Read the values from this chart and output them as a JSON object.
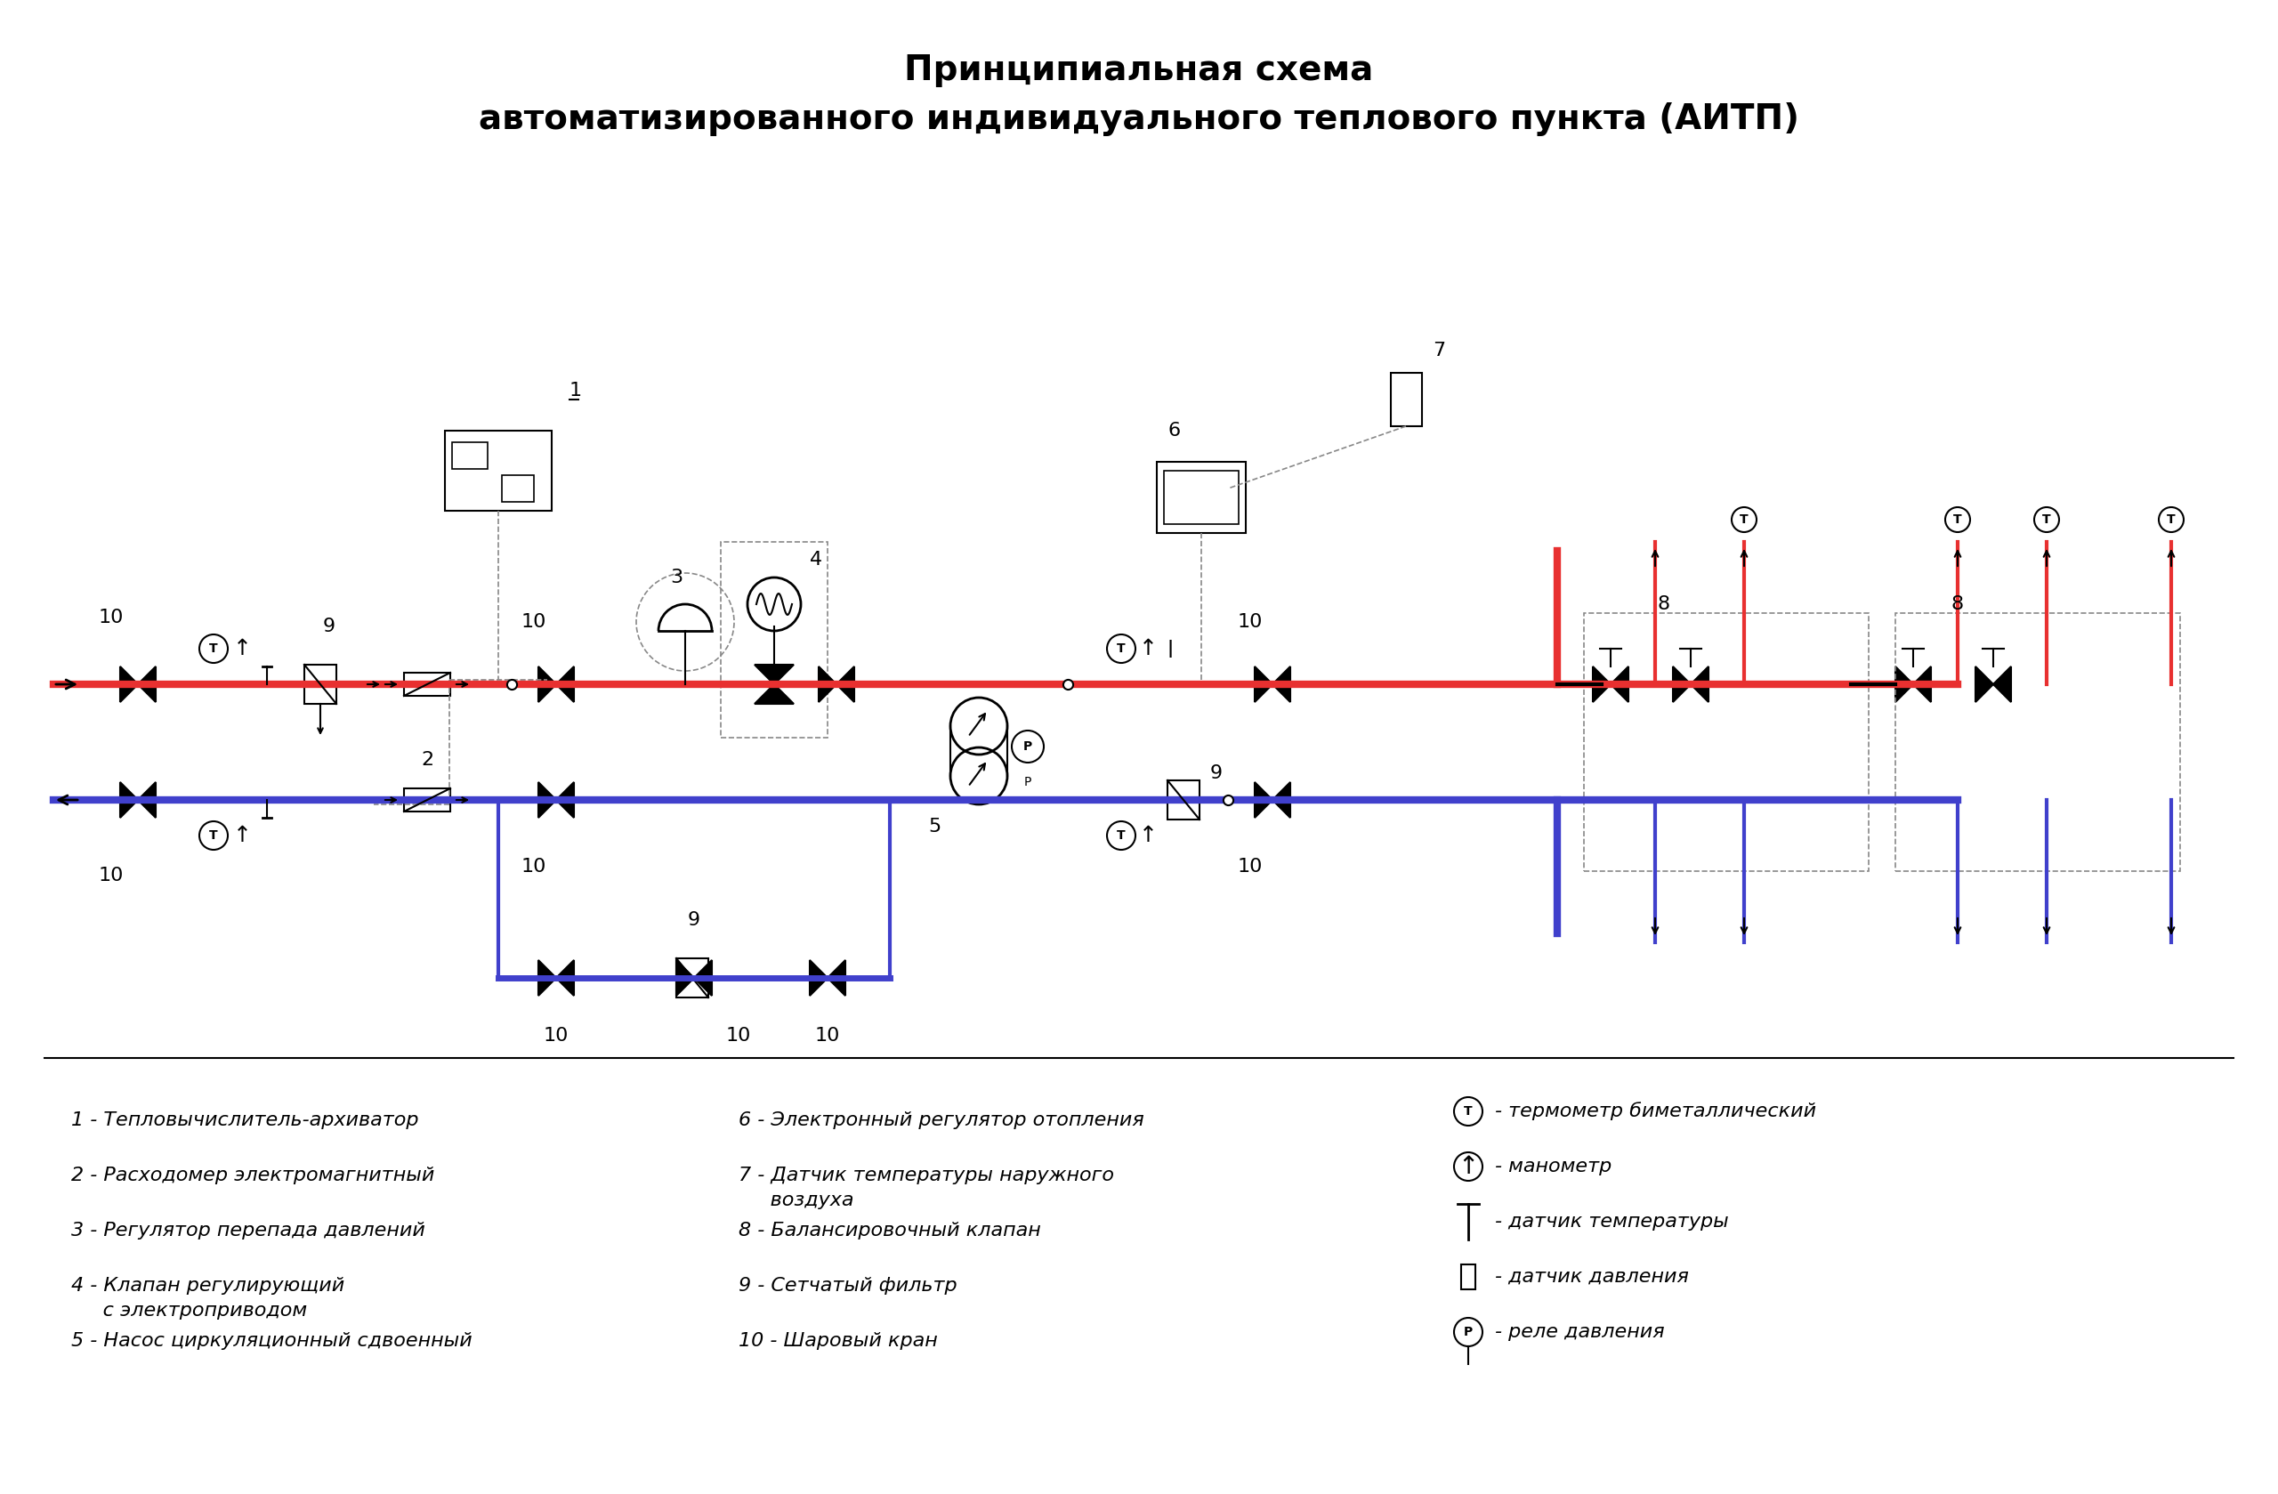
{
  "title_line1": "Принципиальная схема",
  "title_line2": "автоматизированного индивидуального теплового пункта (АИТП)",
  "bg_color": "#FFFFFF",
  "pipe_supply_color": "#E83030",
  "pipe_return_color": "#4040CC",
  "pipe_lw": 6,
  "line_color": "#000000",
  "dashed_color": "#888888",
  "legend_items_left": [
    [
      "1",
      "Тепловычислитель-архиватор"
    ],
    [
      "2",
      "Расходомер электромагнитный"
    ],
    [
      "3",
      "Регулятор перепада давлений"
    ],
    [
      "4",
      "Клапан регулирующий\n     с электроприводом"
    ],
    [
      "5",
      "Насос циркуляционный сдвоенный"
    ]
  ],
  "legend_items_mid": [
    [
      "6",
      "Электронный регулятор отопления"
    ],
    [
      "7",
      "Датчик температуры наружного\n     воздуха"
    ],
    [
      "8",
      "Балансировочный клапан"
    ],
    [
      "9",
      "Сетчатый фильтр"
    ],
    [
      "10",
      "Шаровый кран"
    ]
  ],
  "legend_symbols": [
    "термометр биметаллический",
    "манометр",
    "датчик температуры",
    "датчик давления",
    "реле давления"
  ]
}
